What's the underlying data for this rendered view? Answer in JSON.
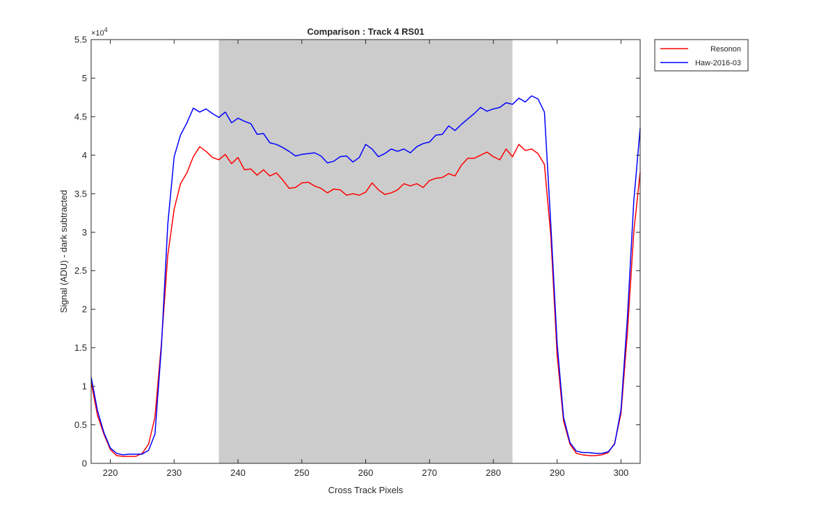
{
  "chart_data": {
    "type": "line",
    "title": "Comparison : Track 4  RS01",
    "xlabel": "Cross Track Pixels",
    "ylabel": "Signal (ADU) - dark subtracted",
    "y_exponent_label": "×10",
    "y_exponent_power": "4",
    "xlim": [
      217,
      303
    ],
    "ylim": [
      0,
      5.5
    ],
    "y_scale_factor": 10000,
    "xticks": [
      220,
      230,
      240,
      250,
      260,
      270,
      280,
      290,
      300
    ],
    "yticks": [
      0,
      0.5,
      1,
      1.5,
      2,
      2.5,
      3,
      3.5,
      4,
      4.5,
      5,
      5.5
    ],
    "ytick_labels": [
      "0",
      "0.5",
      "1",
      "1.5",
      "2",
      "2.5",
      "3",
      "3.5",
      "4",
      "4.5",
      "5",
      "5.5"
    ],
    "grid": false,
    "legend_position": "outside-top-right",
    "shaded_region": {
      "x0": 237,
      "x1": 283,
      "color": "#cccccc"
    },
    "series": [
      {
        "name": "Resonon",
        "color": "#ff0000",
        "x": [
          217,
          218,
          219,
          220,
          221,
          222,
          223,
          224,
          225,
          226,
          227,
          228,
          229,
          230,
          231,
          232,
          233,
          234,
          235,
          236,
          237,
          238,
          239,
          240,
          241,
          242,
          243,
          244,
          245,
          246,
          247,
          248,
          249,
          250,
          251,
          252,
          253,
          254,
          255,
          256,
          257,
          258,
          259,
          260,
          261,
          262,
          263,
          264,
          265,
          266,
          267,
          268,
          269,
          270,
          271,
          272,
          273,
          274,
          275,
          276,
          277,
          278,
          279,
          280,
          281,
          282,
          283,
          284,
          285,
          286,
          287,
          288,
          289,
          290,
          291,
          292,
          293,
          294,
          295,
          296,
          297,
          298,
          299,
          300,
          301,
          302,
          303
        ],
        "y": [
          1.05,
          0.62,
          0.38,
          0.18,
          0.1,
          0.09,
          0.09,
          0.09,
          0.13,
          0.25,
          0.6,
          1.55,
          2.7,
          3.3,
          3.63,
          3.77,
          3.98,
          4.11,
          4.05,
          3.97,
          3.94,
          4.01,
          3.89,
          3.97,
          3.81,
          3.82,
          3.74,
          3.81,
          3.73,
          3.77,
          3.68,
          3.57,
          3.58,
          3.64,
          3.65,
          3.6,
          3.57,
          3.51,
          3.56,
          3.55,
          3.48,
          3.5,
          3.48,
          3.52,
          3.64,
          3.55,
          3.49,
          3.51,
          3.55,
          3.63,
          3.6,
          3.63,
          3.58,
          3.67,
          3.7,
          3.71,
          3.76,
          3.73,
          3.87,
          3.96,
          3.96,
          4.0,
          4.04,
          3.98,
          3.94,
          4.08,
          3.98,
          4.14,
          4.06,
          4.08,
          4.02,
          3.88,
          2.95,
          1.4,
          0.55,
          0.25,
          0.13,
          0.11,
          0.1,
          0.1,
          0.11,
          0.14,
          0.26,
          0.65,
          1.7,
          3.0,
          3.78
        ]
      },
      {
        "name": "Haw-2016-03",
        "color": "#0000ff",
        "x": [
          217,
          218,
          219,
          220,
          221,
          222,
          223,
          224,
          225,
          226,
          227,
          228,
          229,
          230,
          231,
          232,
          233,
          234,
          235,
          236,
          237,
          238,
          239,
          240,
          241,
          242,
          243,
          244,
          245,
          246,
          247,
          248,
          249,
          250,
          251,
          252,
          253,
          254,
          255,
          256,
          257,
          258,
          259,
          260,
          261,
          262,
          263,
          264,
          265,
          266,
          267,
          268,
          269,
          270,
          271,
          272,
          273,
          274,
          275,
          276,
          277,
          278,
          279,
          280,
          281,
          282,
          283,
          284,
          285,
          286,
          287,
          288,
          289,
          290,
          291,
          292,
          293,
          294,
          295,
          296,
          297,
          298,
          299,
          300,
          301,
          302,
          303
        ],
        "y": [
          1.12,
          0.68,
          0.4,
          0.2,
          0.13,
          0.11,
          0.12,
          0.12,
          0.12,
          0.17,
          0.38,
          1.5,
          3.1,
          3.98,
          4.26,
          4.42,
          4.61,
          4.56,
          4.6,
          4.54,
          4.49,
          4.56,
          4.42,
          4.48,
          4.44,
          4.41,
          4.27,
          4.28,
          4.16,
          4.14,
          4.1,
          4.05,
          3.99,
          4.01,
          4.02,
          4.03,
          3.99,
          3.9,
          3.92,
          3.98,
          3.99,
          3.91,
          3.97,
          4.14,
          4.08,
          3.98,
          4.02,
          4.08,
          4.05,
          4.08,
          4.03,
          4.11,
          4.15,
          4.17,
          4.26,
          4.27,
          4.38,
          4.32,
          4.4,
          4.47,
          4.54,
          4.62,
          4.57,
          4.6,
          4.62,
          4.68,
          4.66,
          4.74,
          4.69,
          4.77,
          4.73,
          4.56,
          3.1,
          1.55,
          0.6,
          0.27,
          0.16,
          0.14,
          0.14,
          0.13,
          0.13,
          0.15,
          0.25,
          0.7,
          1.9,
          3.4,
          4.35
        ]
      }
    ]
  }
}
